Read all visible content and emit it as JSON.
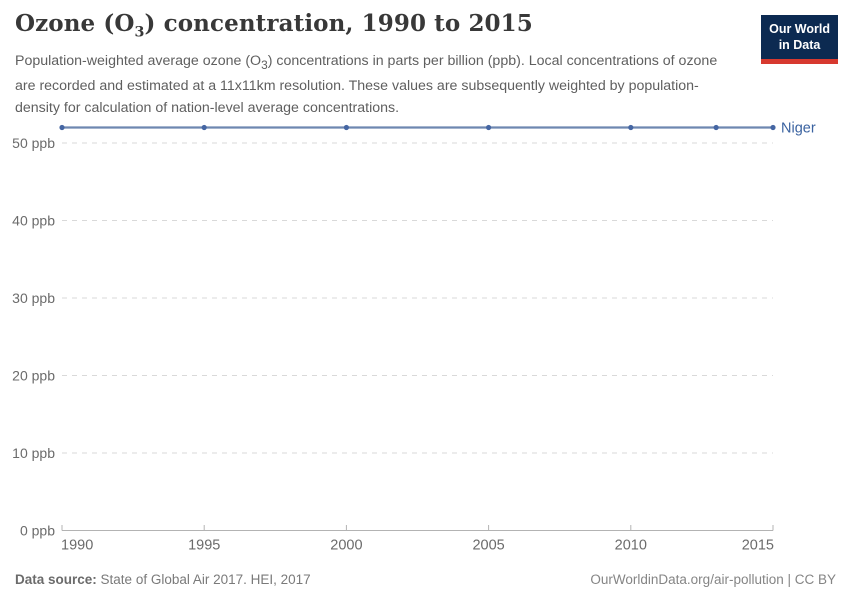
{
  "header": {
    "title": {
      "pre": "Ozone (O",
      "sub": "3",
      "post": ") concentration, 1990 to 2015"
    },
    "subtitle": {
      "pre": "Population-weighted average ozone (O",
      "sub": "3",
      "post": ") concentrations in parts per billion (ppb). Local concentrations of ozone are recorded and estimated at a 11x11km resolution. These values are subsequently weighted by population-density for calculation of nation-level average concentrations."
    }
  },
  "logo": {
    "line1": "Our World",
    "line2": "in Data",
    "bg_color": "#0c2a51",
    "accent_color": "#d7392f",
    "text_color": "#ffffff"
  },
  "footer": {
    "source_label": "Data source:",
    "source_text": "State of Global Air 2017. HEI, 2017",
    "credit": "OurWorldinData.org/air-pollution | CC BY"
  },
  "chart_data": {
    "type": "line",
    "title": "Ozone (O₃) concentration, 1990 to 2015",
    "unit": "ppb",
    "xlabel": "",
    "ylabel": "",
    "xlim": [
      1990,
      2015
    ],
    "ylim": [
      0,
      52.5
    ],
    "grid": "horizontal-dashed",
    "legend_position": "end-of-line-label",
    "x": [
      1990,
      1995,
      2000,
      2005,
      2010,
      2013,
      2015
    ],
    "series": [
      {
        "name": "Niger",
        "values": [
          52,
          52,
          52,
          52,
          52,
          52,
          52
        ]
      }
    ],
    "x_ticks": [
      1990,
      1995,
      2000,
      2005,
      2010,
      2015
    ],
    "x_tick_labels": [
      "1990",
      "1995",
      "2000",
      "2005",
      "2010",
      "2015"
    ],
    "y_ticks": [
      0,
      10,
      20,
      30,
      40,
      50
    ],
    "y_tick_labels": [
      "0 ppb",
      "10 ppb",
      "20 ppb",
      "30 ppb",
      "40 ppb",
      "50 ppb"
    ],
    "colors": {
      "line": "#6e87b0",
      "point": "#4566a3",
      "series_label": "#3a62a0",
      "grid": "#d9d9d9",
      "axis": "#b3b3b3",
      "tick_text": "#6b6b6b"
    }
  }
}
